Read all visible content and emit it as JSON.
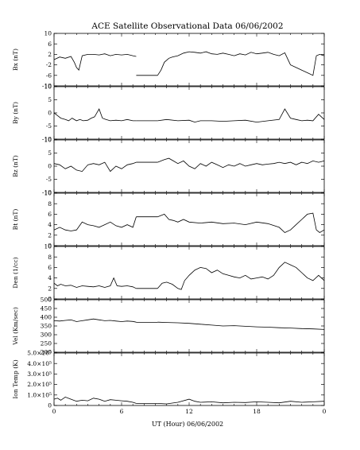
{
  "chart_data": {
    "type": "line",
    "title": "ACE Satellite Observational Data   06/06/2002",
    "xlabel": "UT (Hour)   06/06/2002",
    "x_ticks": [
      "0",
      "6",
      "12",
      "18",
      "0"
    ],
    "xlim": [
      0,
      24
    ],
    "panels": [
      {
        "ylabel": "Bx (nT)",
        "ylim": [
          -10,
          10
        ],
        "y_ticks": [
          "10",
          "6",
          "2",
          "-2",
          "-6",
          "-10"
        ],
        "y_tick_values": [
          10,
          6,
          2,
          -2,
          -6,
          -10
        ],
        "gap": [
          7.3,
          9.2
        ],
        "gap_value": -6,
        "series": [
          {
            "x": [
              0,
              0.5,
              1,
              1.5,
              1.8,
              2.0,
              2.2,
              2.5,
              3,
              3.5,
              4,
              4.5,
              5,
              5.5,
              6,
              6.5,
              7,
              7.3
            ],
            "y": [
              0,
              1,
              0.5,
              1.2,
              -1,
              -3,
              -4,
              1.5,
              2,
              2,
              1.8,
              2.2,
              1.5,
              2,
              1.8,
              2,
              1.5,
              1.2
            ]
          },
          {
            "x": [
              9.2,
              9.5,
              9.8,
              10.2,
              10.5,
              11,
              11.5,
              12,
              12.5,
              13,
              13.5,
              14,
              14.5,
              15,
              15.5,
              16,
              16.5,
              17,
              17.5,
              18,
              18.5,
              19,
              19.5,
              20,
              20.5,
              21,
              21.5,
              22,
              22.5,
              23,
              23.3,
              23.6,
              24
            ],
            "y": [
              -6,
              -4,
              -1,
              0.5,
              1,
              1.5,
              2.5,
              3,
              2.8,
              2.5,
              3,
              2.2,
              2,
              2.5,
              2,
              1.5,
              2.2,
              1.8,
              2.8,
              2.2,
              2.5,
              2.8,
              2,
              1.5,
              2.6,
              -2,
              -3,
              -4,
              -5,
              -6,
              1.5,
              2,
              1.5
            ]
          }
        ]
      },
      {
        "ylabel": "By (nT)",
        "ylim": [
          -10,
          10
        ],
        "y_ticks": [
          "10",
          "5",
          "0",
          "-5",
          "-10"
        ],
        "y_tick_values": [
          10,
          5,
          0,
          -5,
          -10
        ],
        "gap": [
          7.3,
          9.2
        ],
        "gap_value": -3,
        "series": [
          {
            "x": [
              0,
              0.3,
              0.6,
              1,
              1.3,
              1.6,
              2,
              2.3,
              2.6,
              3,
              3.3,
              3.6,
              4,
              4.3,
              4.6,
              5,
              5.5,
              6,
              6.5,
              7,
              7.3
            ],
            "y": [
              0,
              -1,
              -2,
              -2.5,
              -3,
              -2,
              -3,
              -2.5,
              -3,
              -2.8,
              -2,
              -1.5,
              1.5,
              -2,
              -2.5,
              -3,
              -2.8,
              -3,
              -2.5,
              -3,
              -3
            ]
          },
          {
            "x": [
              9.2,
              10,
              11,
              12,
              12.5,
              13,
              14,
              15,
              16,
              17,
              18,
              19,
              20,
              20.5,
              21,
              21.5,
              22,
              22.5,
              23,
              23.5,
              24
            ],
            "y": [
              -3,
              -2.5,
              -3,
              -2.8,
              -3.5,
              -3,
              -3,
              -3.2,
              -3,
              -2.8,
              -3.5,
              -3,
              -2.5,
              1.5,
              -2,
              -2.5,
              -3,
              -2.8,
              -3,
              -0.5,
              -2.5
            ]
          }
        ]
      },
      {
        "ylabel": "Bz (nT)",
        "ylim": [
          -10,
          10
        ],
        "y_ticks": [
          "10",
          "5",
          "0",
          "-5",
          "-10"
        ],
        "y_tick_values": [
          10,
          5,
          0,
          -5,
          -10
        ],
        "gap": [
          7.3,
          9.2
        ],
        "gap_value": 1.5,
        "series": [
          {
            "x": [
              0,
              0.5,
              1,
              1.5,
              2,
              2.5,
              3,
              3.5,
              4,
              4.5,
              5,
              5.5,
              6,
              6.5,
              7,
              7.3
            ],
            "y": [
              1,
              0.5,
              -1,
              0,
              -1.5,
              -2,
              0.5,
              1,
              0.5,
              1.5,
              -2,
              0,
              -1,
              0.5,
              1,
              1.5
            ]
          },
          {
            "x": [
              9.2,
              9.8,
              10.2,
              10.6,
              11,
              11.5,
              12,
              12.5,
              13,
              13.5,
              14,
              14.5,
              15,
              15.5,
              16,
              16.5,
              17,
              17.5,
              18,
              18.5,
              19,
              19.5,
              20,
              20.5,
              21,
              21.5,
              22,
              22.5,
              23,
              23.5,
              24
            ],
            "y": [
              1.5,
              2.5,
              3,
              2,
              1,
              2,
              0,
              -1,
              1,
              0,
              1.5,
              0.5,
              -0.5,
              0.5,
              0,
              1,
              0,
              0.5,
              1,
              0.5,
              0.8,
              1,
              1.5,
              1,
              1.5,
              0.5,
              1.5,
              1,
              2,
              1.5,
              2
            ]
          }
        ]
      },
      {
        "ylabel": "Bt (nT)",
        "ylim": [
          0,
          10
        ],
        "y_ticks": [
          "10",
          "8",
          "6",
          "4",
          "2",
          "0"
        ],
        "y_tick_values": [
          10,
          8,
          6,
          4,
          2,
          0
        ],
        "gap": [
          7.3,
          9.2
        ],
        "gap_value": 5.5,
        "series": [
          {
            "x": [
              0,
              0.5,
              1,
              1.5,
              2,
              2.5,
              3,
              3.5,
              4,
              4.5,
              5,
              5.5,
              6,
              6.5,
              7,
              7.3
            ],
            "y": [
              3,
              3.5,
              3,
              2.8,
              3,
              4.5,
              4,
              3.8,
              3.5,
              4,
              4.5,
              3.8,
              3.5,
              4,
              3.5,
              5.5
            ]
          },
          {
            "x": [
              9.2,
              9.8,
              10.2,
              10.6,
              11,
              11.5,
              12,
              13,
              14,
              15,
              16,
              17,
              18,
              19,
              20,
              20.5,
              21,
              21.5,
              22,
              22.5,
              23,
              23.3,
              23.6,
              24
            ],
            "y": [
              5.5,
              6,
              5,
              4.8,
              4.5,
              5,
              4.5,
              4.3,
              4.5,
              4.2,
              4.3,
              4,
              4.5,
              4.2,
              3.5,
              2.5,
              3,
              4,
              5,
              6,
              6.2,
              3,
              2.5,
              3
            ]
          }
        ]
      },
      {
        "ylabel": "Den (1/cc)",
        "ylim": [
          0,
          10
        ],
        "y_ticks": [
          "10",
          "8",
          "6",
          "4",
          "2",
          "0"
        ],
        "y_tick_values": [
          10,
          8,
          6,
          4,
          2,
          0
        ],
        "gap": [
          7.3,
          9.2
        ],
        "gap_value": 2,
        "series": [
          {
            "x": [
              0,
              0.3,
              0.6,
              1,
              1.5,
              2,
              2.5,
              3,
              3.5,
              4,
              4.5,
              5,
              5.3,
              5.6,
              6,
              6.5,
              7,
              7.3
            ],
            "y": [
              3,
              2.5,
              2.8,
              2.5,
              2.6,
              2.2,
              2.5,
              2.4,
              2.3,
              2.5,
              2.2,
              2.5,
              4,
              2.5,
              2.4,
              2.5,
              2.3,
              2
            ]
          },
          {
            "x": [
              9.2,
              9.6,
              10,
              10.5,
              11,
              11.3,
              11.6,
              12,
              12.5,
              13,
              13.5,
              14,
              14.5,
              15,
              15.5,
              16,
              16.5,
              17,
              17.5,
              18,
              18.5,
              19,
              19.5,
              20,
              20.5,
              21,
              21.5,
              22,
              22.5,
              23,
              23.5,
              24
            ],
            "y": [
              2,
              3,
              3.2,
              2.8,
              2,
              1.8,
              3.5,
              4.5,
              5.5,
              6,
              5.8,
              5,
              5.5,
              4.8,
              4.5,
              4.2,
              4,
              4.5,
              3.8,
              4,
              4.2,
              3.8,
              4.5,
              6,
              7,
              6.5,
              6,
              5,
              4,
              3.5,
              4.5,
              3.5
            ]
          }
        ]
      },
      {
        "ylabel": "Vel (Km/sec)",
        "ylim": [
          200,
          500
        ],
        "y_ticks": [
          "500",
          "450",
          "400",
          "350",
          "300",
          "250",
          "200"
        ],
        "y_tick_values": [
          500,
          450,
          400,
          350,
          300,
          250,
          200
        ],
        "gap": [
          7.3,
          9.2
        ],
        "gap_value": 370,
        "series": [
          {
            "x": [
              0,
              0.5,
              1,
              1.5,
              2,
              2.5,
              3,
              3.5,
              4,
              4.5,
              5,
              5.5,
              6,
              6.5,
              7,
              7.3
            ],
            "y": [
              380,
              378,
              382,
              385,
              375,
              380,
              385,
              390,
              385,
              380,
              382,
              378,
              375,
              378,
              376,
              372
            ]
          },
          {
            "x": [
              9.2,
              10,
              11,
              12,
              13,
              14,
              15,
              16,
              17,
              18,
              19,
              20,
              21,
              22,
              23,
              24
            ],
            "y": [
              372,
              370,
              368,
              365,
              360,
              355,
              350,
              352,
              348,
              345,
              343,
              340,
              338,
              335,
              333,
              330
            ]
          }
        ]
      },
      {
        "ylabel": "Ion Temp (K)",
        "ylim": [
          0,
          500000
        ],
        "y_ticks": [
          "5.0×10⁵",
          "4.0×10⁵",
          "3.0×10⁵",
          "2.0×10⁵",
          "1.0×10⁵",
          "0"
        ],
        "y_tick_values": [
          500000,
          400000,
          300000,
          200000,
          100000,
          0
        ],
        "gap": [
          7.3,
          9.2
        ],
        "gap_value": 20000,
        "series": [
          {
            "x": [
              0,
              0.3,
              0.6,
              1,
              1.5,
              2,
              2.5,
              3,
              3.5,
              4,
              4.5,
              5,
              5.5,
              6,
              6.5,
              7,
              7.3
            ],
            "y": [
              60000,
              70000,
              50000,
              80000,
              60000,
              40000,
              50000,
              45000,
              70000,
              60000,
              40000,
              55000,
              50000,
              45000,
              40000,
              30000,
              20000
            ]
          },
          {
            "x": [
              9.2,
              10,
              11,
              12,
              12.5,
              13,
              14,
              15,
              16,
              17,
              18,
              19,
              20,
              21,
              22,
              23,
              24
            ],
            "y": [
              20000,
              15000,
              30000,
              60000,
              40000,
              30000,
              35000,
              25000,
              30000,
              28000,
              35000,
              30000,
              25000,
              40000,
              30000,
              35000,
              40000
            ]
          }
        ]
      }
    ]
  }
}
